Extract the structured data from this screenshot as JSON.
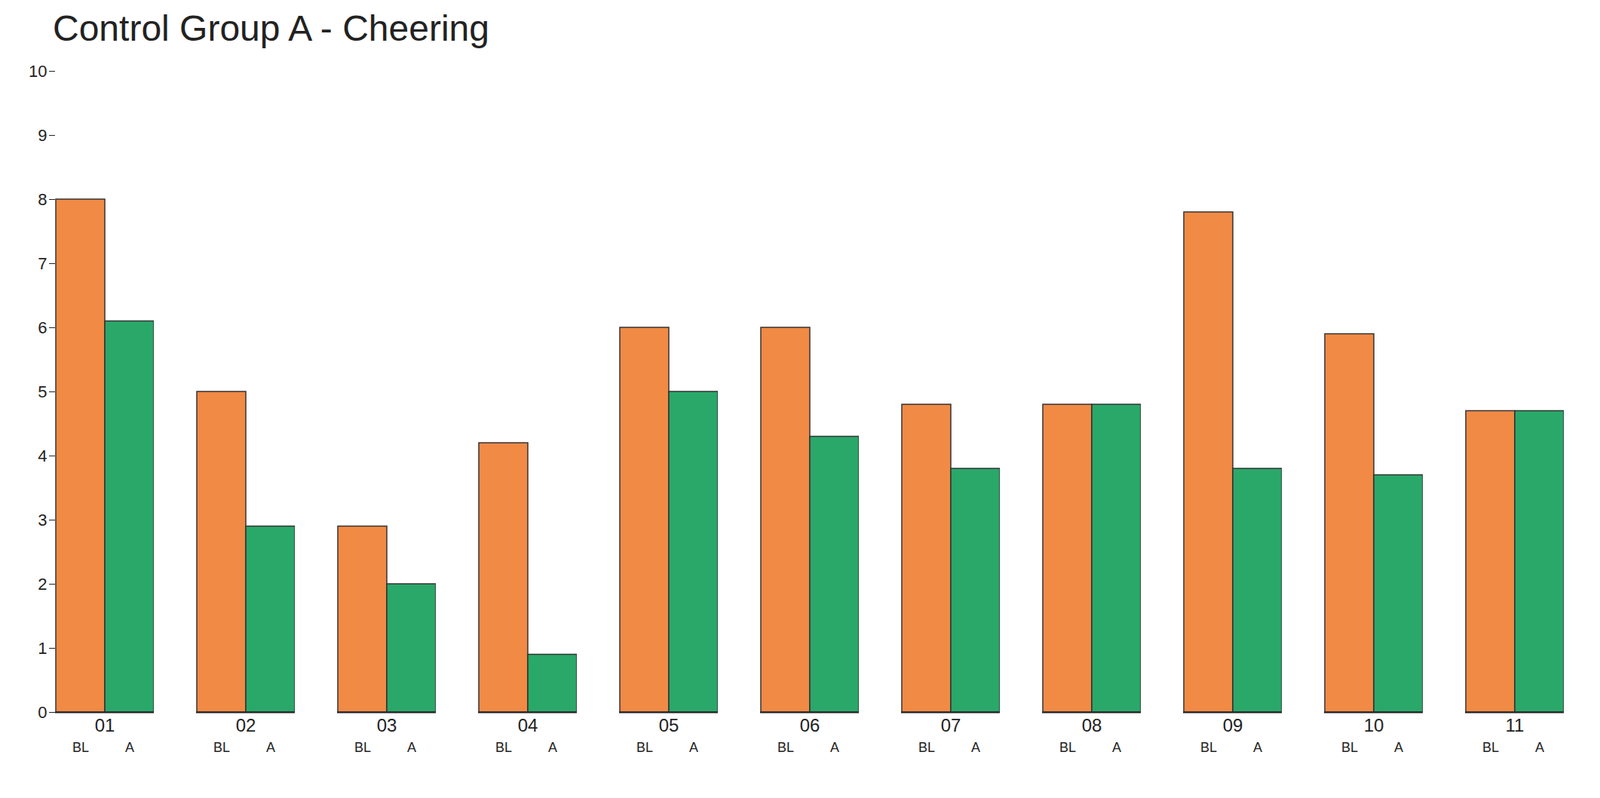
{
  "chart_data": {
    "type": "bar",
    "title": "Control Group A - Cheering",
    "categories": [
      "01",
      "02",
      "03",
      "04",
      "05",
      "06",
      "07",
      "08",
      "09",
      "10",
      "11"
    ],
    "series": [
      {
        "name": "BL",
        "color": "#f08a45",
        "values": [
          8,
          5,
          2.9,
          4.2,
          6,
          6,
          4.8,
          4.8,
          7.8,
          5.9,
          4.7
        ]
      },
      {
        "name": "A",
        "color": "#2aa86a",
        "values": [
          6.1,
          2.9,
          2,
          0.9,
          5,
          4.3,
          3.8,
          4.8,
          3.8,
          3.7,
          4.7
        ]
      }
    ],
    "ylim": [
      0,
      10
    ],
    "yticks": [
      0,
      1,
      2,
      3,
      4,
      5,
      6,
      7,
      8,
      9,
      10
    ],
    "grid": false
  }
}
